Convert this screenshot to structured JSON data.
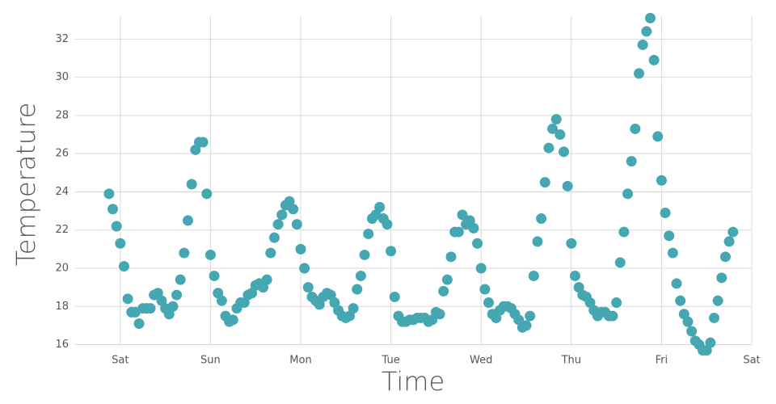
{
  "chart_data": {
    "type": "scatter",
    "x_label": "Time",
    "y_label": "Temperature",
    "color": "#45a7b2",
    "grid": true,
    "xlim": [
      -12,
      168
    ],
    "ylim": [
      15.6,
      33.2
    ],
    "xticks": [
      {
        "value": 0,
        "label": "Sat"
      },
      {
        "value": 24,
        "label": "Sun"
      },
      {
        "value": 48,
        "label": "Mon"
      },
      {
        "value": 72,
        "label": "Tue"
      },
      {
        "value": 96,
        "label": "Wed"
      },
      {
        "value": 120,
        "label": "Thu"
      },
      {
        "value": 144,
        "label": "Fri"
      },
      {
        "value": 168,
        "label": "Sat"
      }
    ],
    "yticks": [
      16,
      18,
      20,
      22,
      24,
      26,
      28,
      30,
      32
    ],
    "x": [
      -3,
      -2,
      -1,
      0,
      1,
      2,
      3,
      4,
      5,
      6,
      7,
      8,
      9,
      10,
      11,
      12,
      13,
      14,
      15,
      16,
      17,
      18,
      19,
      20,
      21,
      22,
      23,
      24,
      25,
      26,
      27,
      28,
      29,
      30,
      31,
      32,
      33,
      34,
      35,
      36,
      37,
      38,
      39,
      40,
      41,
      42,
      43,
      44,
      45,
      46,
      47,
      48,
      49,
      50,
      51,
      52,
      53,
      54,
      55,
      56,
      57,
      58,
      59,
      60,
      61,
      62,
      63,
      64,
      65,
      66,
      67,
      68,
      69,
      70,
      71,
      72,
      73,
      74,
      75,
      76,
      77,
      78,
      79,
      80,
      81,
      82,
      83,
      84,
      85,
      86,
      87,
      88,
      89,
      90,
      91,
      92,
      93,
      94,
      95,
      96,
      97,
      98,
      99,
      100,
      101,
      102,
      103,
      104,
      105,
      106,
      107,
      108,
      109,
      110,
      111,
      112,
      113,
      114,
      115,
      116,
      117,
      118,
      119,
      120,
      121,
      122,
      123,
      124,
      125,
      126,
      127,
      128,
      129,
      130,
      131,
      132,
      133,
      134,
      135,
      136,
      137,
      138,
      139,
      140,
      141,
      142,
      143,
      144,
      145,
      146,
      147,
      148,
      149,
      150,
      151,
      152,
      153,
      154,
      155,
      156,
      157,
      158,
      159,
      160,
      161,
      162,
      163
    ],
    "values": [
      23.9,
      23.1,
      22.2,
      21.3,
      20.1,
      18.4,
      17.7,
      17.7,
      17.1,
      17.9,
      17.9,
      17.9,
      18.6,
      18.7,
      18.3,
      17.9,
      17.6,
      18.0,
      18.6,
      19.4,
      20.8,
      22.5,
      24.4,
      26.2,
      26.6,
      26.6,
      23.9,
      20.7,
      19.6,
      18.7,
      18.3,
      17.5,
      17.2,
      17.3,
      17.9,
      18.2,
      18.2,
      18.6,
      18.7,
      19.1,
      19.2,
      19.0,
      19.4,
      20.8,
      21.6,
      22.3,
      22.8,
      23.3,
      23.5,
      23.1,
      22.3,
      21.0,
      20.0,
      19.0,
      18.5,
      18.3,
      18.1,
      18.5,
      18.7,
      18.6,
      18.2,
      17.8,
      17.5,
      17.4,
      17.5,
      17.9,
      18.9,
      19.6,
      20.7,
      21.8,
      22.6,
      22.8,
      23.2,
      22.6,
      22.3,
      20.9,
      18.5,
      17.5,
      17.2,
      17.2,
      17.3,
      17.3,
      17.4,
      17.4,
      17.4,
      17.2,
      17.3,
      17.7,
      17.6,
      18.8,
      19.4,
      20.6,
      21.9,
      21.9,
      22.8,
      22.3,
      22.5,
      22.1,
      21.3,
      20.0,
      18.9,
      18.2,
      17.6,
      17.4,
      17.8,
      18.0,
      18.0,
      17.9,
      17.6,
      17.3,
      16.9,
      17.0,
      17.5,
      19.6,
      21.4,
      22.6,
      24.5,
      26.3,
      27.3,
      27.8,
      27.0,
      26.1,
      24.3,
      21.3,
      19.6,
      19.0,
      18.6,
      18.5,
      18.2,
      17.8,
      17.5,
      17.7,
      17.7,
      17.5,
      17.5,
      18.2,
      20.3,
      21.9,
      23.9,
      25.6,
      27.3,
      30.2,
      31.7,
      32.4,
      33.1,
      30.9,
      26.9,
      24.6,
      22.9,
      21.7,
      20.8,
      19.2,
      18.3,
      17.6,
      17.2,
      16.7,
      16.2,
      16.0,
      15.7,
      15.7,
      16.1,
      17.4,
      18.3,
      19.5,
      20.6,
      21.4,
      21.9
    ]
  }
}
